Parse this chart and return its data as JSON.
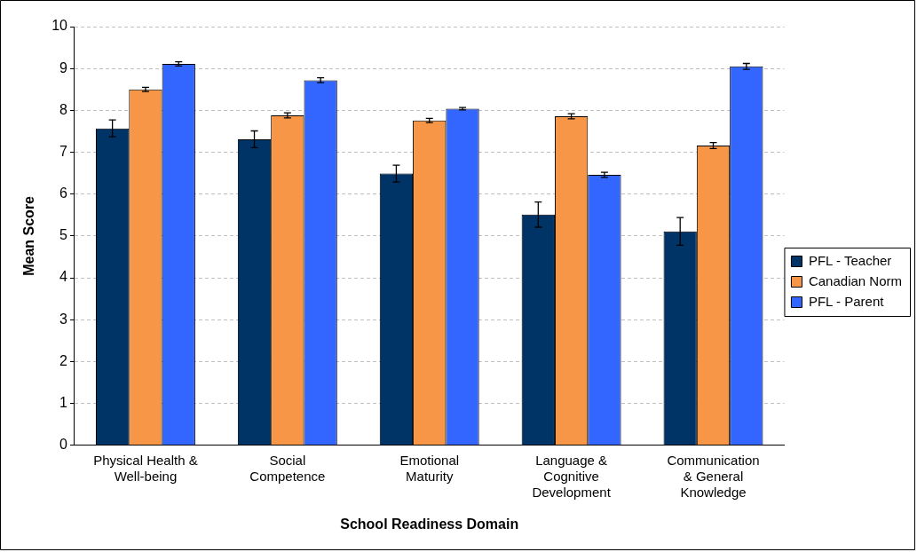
{
  "chart_data": {
    "type": "bar",
    "xlabel": "School Readiness Domain",
    "ylabel": "Mean Score",
    "categories": [
      "Physical Health & Well-being",
      "Social Competence",
      "Emotional Maturity",
      "Language & Cognitive Development",
      "Communication & General Knowledge"
    ],
    "series": [
      {
        "name": "PFL - Teacher",
        "color": "#003366",
        "values": [
          7.57,
          7.31,
          6.49,
          5.51,
          5.11
        ],
        "errors": [
          0.2,
          0.2,
          0.2,
          0.3,
          0.33
        ]
      },
      {
        "name": "Canadian Norm",
        "color": "#f79646",
        "values": [
          8.5,
          7.88,
          7.76,
          7.86,
          7.16
        ],
        "errors": [
          0.05,
          0.06,
          0.05,
          0.06,
          0.07
        ]
      },
      {
        "name": "PFL - Parent",
        "color": "#3366ff",
        "values": [
          9.11,
          8.72,
          8.04,
          6.46,
          9.05
        ],
        "errors": [
          0.05,
          0.06,
          0.03,
          0.06,
          0.07
        ]
      }
    ],
    "ylim": [
      0,
      10
    ],
    "yticks": [
      0,
      1,
      2,
      3,
      4,
      5,
      6,
      7,
      8,
      9,
      10
    ],
    "grid": "y",
    "legend": "right"
  }
}
